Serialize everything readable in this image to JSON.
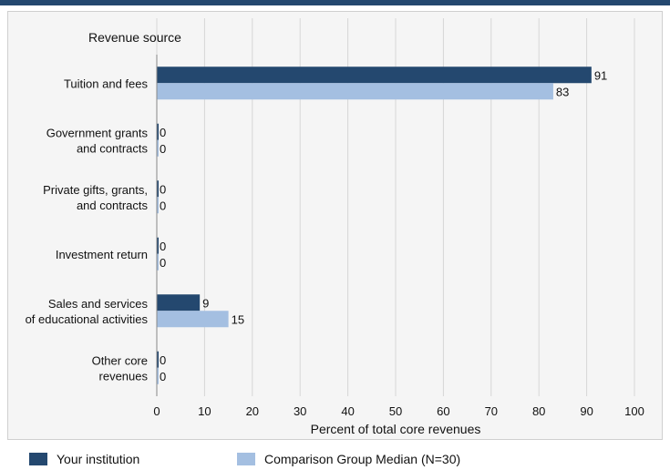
{
  "colors": {
    "your_institution": "#24486f",
    "comparison_median": "#a4bfe1",
    "grid": "#d6d6d6",
    "top_rule": "#24486f"
  },
  "legend": {
    "items": [
      {
        "label": "Your institution"
      },
      {
        "label": "Comparison Group Median (N=30)"
      }
    ]
  },
  "chart_data": {
    "type": "bar",
    "orientation": "horizontal",
    "title": "Revenue source",
    "xlabel": "Percent of total core revenues",
    "xlim": [
      0,
      100
    ],
    "xticks": [
      0,
      10,
      20,
      30,
      40,
      50,
      60,
      70,
      80,
      90,
      100
    ],
    "grid": true,
    "legend_position": "bottom",
    "categories": [
      [
        "Tuition and fees"
      ],
      [
        "Government grants",
        "and contracts"
      ],
      [
        "Private gifts, grants,",
        "and contracts"
      ],
      [
        "Investment return"
      ],
      [
        "Sales and services",
        "of educational activities"
      ],
      [
        "Other core",
        "revenues"
      ]
    ],
    "series": [
      {
        "name": "Your institution",
        "values": [
          91,
          0,
          0,
          0,
          9,
          0
        ]
      },
      {
        "name": "Comparison Group Median (N=30)",
        "values": [
          83,
          0,
          0,
          0,
          15,
          0
        ]
      }
    ]
  }
}
